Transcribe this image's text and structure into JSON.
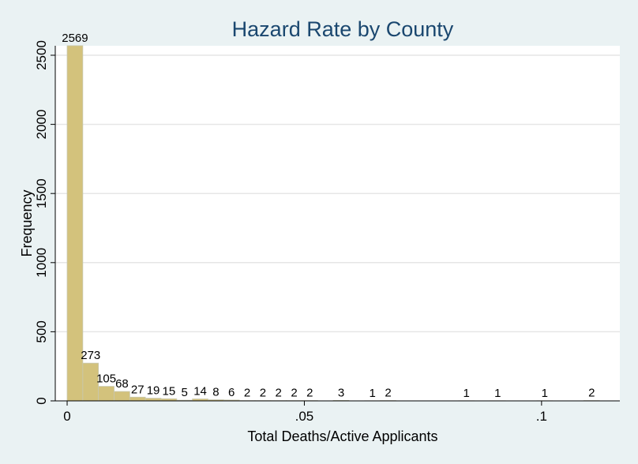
{
  "chart_data": {
    "type": "bar",
    "title": "Hazard Rate by County",
    "xlabel": "Total Deaths/Active Applicants",
    "ylabel": "Frequency",
    "bar_color": "#d3c27c",
    "bar_edge": "#c8c8b0",
    "plot_bg": "#ffffff",
    "outer_bg": "#eaf2f3",
    "title_color": "#1a476f",
    "xlim": [
      -0.0025,
      0.1165
    ],
    "ylim": [
      0,
      2500
    ],
    "y_ticks": [
      0,
      500,
      1000,
      1500,
      2000,
      2500
    ],
    "x_ticks": [
      0,
      0.05,
      0.1
    ],
    "x_tick_labels": [
      "0",
      ".05",
      ".1"
    ],
    "bin_width": 0.0033,
    "bins": [
      {
        "x": 0.0,
        "value": 2569,
        "label": "2569"
      },
      {
        "x": 0.0033,
        "value": 273,
        "label": "273"
      },
      {
        "x": 0.0066,
        "value": 105,
        "label": "105"
      },
      {
        "x": 0.0099,
        "value": 68,
        "label": "68"
      },
      {
        "x": 0.0132,
        "value": 27,
        "label": "27"
      },
      {
        "x": 0.0165,
        "value": 19,
        "label": "19"
      },
      {
        "x": 0.0198,
        "value": 15,
        "label": "15"
      },
      {
        "x": 0.0231,
        "value": 5,
        "label": "5"
      },
      {
        "x": 0.0264,
        "value": 14,
        "label": "14"
      },
      {
        "x": 0.0297,
        "value": 8,
        "label": "8"
      },
      {
        "x": 0.033,
        "value": 6,
        "label": "6"
      },
      {
        "x": 0.0363,
        "value": 2,
        "label": "2"
      },
      {
        "x": 0.0396,
        "value": 2,
        "label": "2"
      },
      {
        "x": 0.0429,
        "value": 2,
        "label": "2"
      },
      {
        "x": 0.0462,
        "value": 2,
        "label": "2"
      },
      {
        "x": 0.0495,
        "value": 2,
        "label": "2"
      },
      {
        "x": 0.0561,
        "value": 3,
        "label": "3"
      },
      {
        "x": 0.0627,
        "value": 1,
        "label": "1"
      },
      {
        "x": 0.066,
        "value": 2,
        "label": "2"
      },
      {
        "x": 0.0825,
        "value": 1,
        "label": "1"
      },
      {
        "x": 0.0891,
        "value": 1,
        "label": "1"
      },
      {
        "x": 0.099,
        "value": 1,
        "label": "1"
      },
      {
        "x": 0.1089,
        "value": 2,
        "label": "2"
      }
    ]
  }
}
